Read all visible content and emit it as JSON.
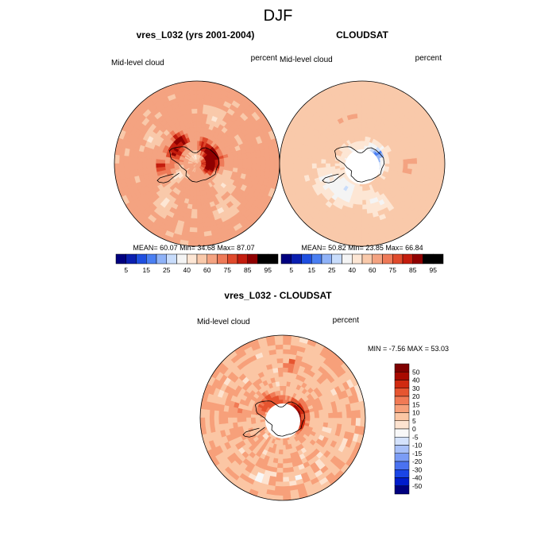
{
  "page_title": "DJF",
  "colors": {
    "abs_palette": [
      "#00007f",
      "#0a1fb0",
      "#1f4fe0",
      "#4a7ff2",
      "#8fb2f7",
      "#c8dcfb",
      "#f4f4f4",
      "#fde6d4",
      "#f9c9aa",
      "#f4a381",
      "#ee7a58",
      "#e04a2c",
      "#c41d0e",
      "#8f0000"
    ],
    "diff_palette": [
      "#00007f",
      "#001ccc",
      "#1a45e6",
      "#4a72f0",
      "#7b9cf5",
      "#a8c0f9",
      "#d4e2fc",
      "#f8f8f8",
      "#fde3d0",
      "#fbc6a4",
      "#f7a07a",
      "#f17a55",
      "#e65530",
      "#d02a10",
      "#a80a00",
      "#7f0000"
    ]
  },
  "chart_data": [
    {
      "type": "heatmap",
      "projection": "south-polar-stereographic",
      "title": "vres_L032 (yrs 2001-2004)",
      "left_label": "Mid-level cloud",
      "right_label": "percent",
      "stats": {
        "mean": 60.07,
        "min": 34.68,
        "max": 87.07
      },
      "stats_text": "MEAN=  60.07  Min=  34.68  Max=  87.07",
      "colorbar": {
        "orientation": "horizontal",
        "levels": [
          5,
          10,
          15,
          20,
          25,
          30,
          40,
          50,
          60,
          70,
          75,
          80,
          85,
          90,
          95
        ],
        "tick_labels": [
          "5",
          "15",
          "25",
          "40",
          "60",
          "75",
          "85",
          "95"
        ]
      },
      "has_missing_center": false,
      "field": {
        "background_value": 63,
        "features": [
          {
            "kind": "blob",
            "lon": 100,
            "colat": 19,
            "r": 8,
            "value": 85
          },
          {
            "kind": "blob",
            "lon": 70,
            "colat": 14,
            "r": 5,
            "value": 80
          },
          {
            "kind": "blob",
            "lon": 130,
            "colat": 16,
            "r": 7,
            "value": 80
          },
          {
            "kind": "blob",
            "lon": 160,
            "colat": 22,
            "r": 6,
            "value": 78
          },
          {
            "kind": "blob",
            "lon": 215,
            "colat": 32,
            "r": 6,
            "value": 88
          },
          {
            "kind": "blob",
            "lon": 245,
            "colat": 28,
            "r": 7,
            "value": 85
          },
          {
            "kind": "blob",
            "lon": 275,
            "colat": 40,
            "r": 4,
            "value": 88
          },
          {
            "kind": "blob",
            "lon": 285,
            "colat": 30,
            "r": 5,
            "value": 76
          },
          {
            "kind": "blob",
            "lon": 190,
            "colat": 8,
            "r": 5,
            "value": 45
          },
          {
            "kind": "blob",
            "lon": 300,
            "colat": 24,
            "r": 5,
            "value": 42
          },
          {
            "kind": "blob",
            "lon": 55,
            "colat": 35,
            "r": 8,
            "value": 50
          },
          {
            "kind": "blob",
            "lon": 320,
            "colat": 55,
            "r": 8,
            "value": 50
          },
          {
            "kind": "blob",
            "lon": 30,
            "colat": 60,
            "r": 7,
            "value": 48
          },
          {
            "kind": "blob",
            "lon": 240,
            "colat": 55,
            "r": 7,
            "value": 50
          },
          {
            "kind": "blob",
            "lon": 160,
            "colat": 55,
            "r": 7,
            "value": 52
          }
        ]
      }
    },
    {
      "type": "heatmap",
      "projection": "south-polar-stereographic",
      "title": "CLOUDSAT",
      "left_label": "Mid-level cloud",
      "right_label": "percent",
      "stats": {
        "mean": 50.82,
        "min": 23.85,
        "max": 66.84
      },
      "stats_text": "MEAN=  50.82  Min=  23.85  Max=  66.84",
      "colorbar": {
        "orientation": "horizontal",
        "levels": [
          5,
          10,
          15,
          20,
          25,
          30,
          40,
          50,
          60,
          70,
          75,
          80,
          85,
          90,
          95
        ],
        "tick_labels": [
          "5",
          "15",
          "25",
          "40",
          "60",
          "75",
          "85",
          "95"
        ]
      },
      "has_missing_center": true,
      "field": {
        "background_value": 55,
        "features": [
          {
            "kind": "blob",
            "lon": 330,
            "colat": 35,
            "r": 10,
            "value": 35
          },
          {
            "kind": "blob",
            "lon": 120,
            "colat": 20,
            "r": 6,
            "value": 20
          },
          {
            "kind": "blob",
            "lon": 75,
            "colat": 18,
            "r": 6,
            "value": 28
          },
          {
            "kind": "blob",
            "lon": 160,
            "colat": 18,
            "r": 7,
            "value": 36
          },
          {
            "kind": "blob",
            "lon": 300,
            "colat": 42,
            "r": 12,
            "value": 38
          },
          {
            "kind": "blob",
            "lon": 20,
            "colat": 45,
            "r": 9,
            "value": 40
          },
          {
            "kind": "blob",
            "lon": 220,
            "colat": 20,
            "r": 6,
            "value": 40
          },
          {
            "kind": "blob",
            "lon": 260,
            "colat": 20,
            "r": 5,
            "value": 44
          },
          {
            "kind": "blob",
            "lon": 200,
            "colat": 50,
            "r": 8,
            "value": 61
          },
          {
            "kind": "blob",
            "lon": 90,
            "colat": 50,
            "r": 8,
            "value": 62
          }
        ]
      }
    },
    {
      "type": "heatmap",
      "projection": "south-polar-stereographic",
      "title": "vres_L032 - CLOUDSAT",
      "left_label": "Mid-level cloud",
      "right_label": "percent",
      "stats": {
        "min": -7.56,
        "max": 53.03
      },
      "stats_text": "MIN =  -7.56 MAX =  53.03",
      "colorbar": {
        "orientation": "vertical",
        "levels": [
          -50,
          -40,
          -30,
          -20,
          -15,
          -10,
          -5,
          0,
          5,
          10,
          15,
          20,
          30,
          40,
          50
        ],
        "tick_labels": [
          "50",
          "40",
          "30",
          "20",
          "15",
          "10",
          "5",
          "0",
          "-5",
          "-10",
          "-15",
          "-20",
          "-30",
          "-40",
          "-50"
        ]
      },
      "has_missing_center": true,
      "field": {
        "background_value": 9,
        "features": [
          {
            "kind": "blob",
            "lon": 105,
            "colat": 16,
            "r": 7,
            "value": 35
          },
          {
            "kind": "blob",
            "lon": 80,
            "colat": 14,
            "r": 5,
            "value": 45
          },
          {
            "kind": "blob",
            "lon": 130,
            "colat": 16,
            "r": 6,
            "value": 32
          },
          {
            "kind": "blob",
            "lon": 60,
            "colat": 18,
            "r": 5,
            "value": 30
          },
          {
            "kind": "blob",
            "lon": 215,
            "colat": 22,
            "r": 6,
            "value": 25
          },
          {
            "kind": "blob",
            "lon": 245,
            "colat": 25,
            "r": 5,
            "value": 22
          },
          {
            "kind": "blob",
            "lon": 190,
            "colat": 14,
            "r": 4,
            "value": 24
          },
          {
            "kind": "blob",
            "lon": 320,
            "colat": 12,
            "r": 5,
            "value": 22
          },
          {
            "kind": "blob",
            "lon": 340,
            "colat": 70,
            "r": 5,
            "value": -5
          },
          {
            "kind": "blob",
            "lon": 15,
            "colat": 68,
            "r": 4,
            "value": -4
          },
          {
            "kind": "blob",
            "lon": 170,
            "colat": 60,
            "r": 6,
            "value": 20
          },
          {
            "kind": "blob",
            "lon": 260,
            "colat": 55,
            "r": 6,
            "value": 16
          }
        ]
      }
    }
  ]
}
